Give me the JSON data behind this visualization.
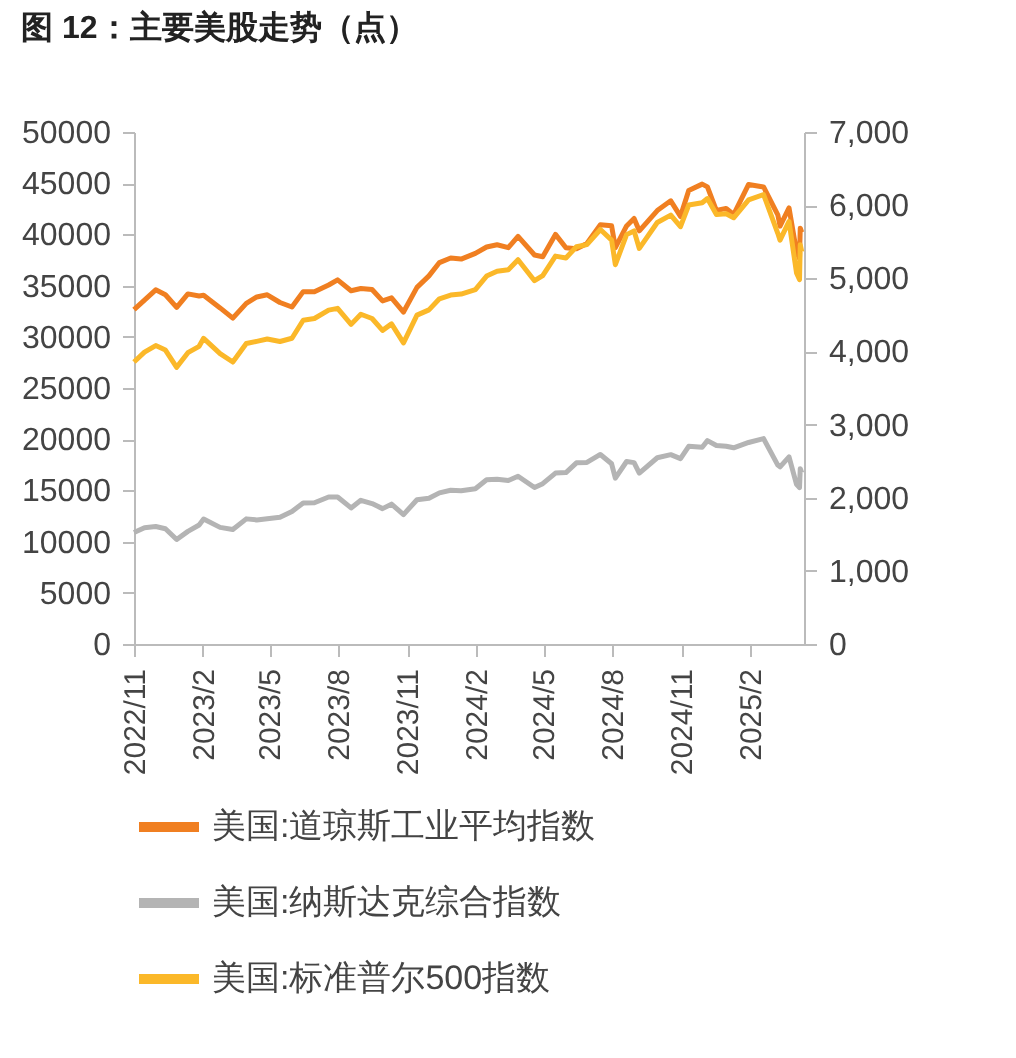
{
  "chart_data": {
    "type": "line",
    "title": "图 12：主要美股走势（点）",
    "x": [
      "2022-11-01",
      "2022-11-15",
      "2022-11-30",
      "2022-12-13",
      "2022-12-28",
      "2023-01-12",
      "2023-01-27",
      "2023-02-02",
      "2023-02-24",
      "2023-03-13",
      "2023-03-31",
      "2023-04-14",
      "2023-04-28",
      "2023-05-15",
      "2023-05-31",
      "2023-06-15",
      "2023-06-30",
      "2023-07-19",
      "2023-07-31",
      "2023-08-18",
      "2023-08-31",
      "2023-09-15",
      "2023-09-29",
      "2023-10-11",
      "2023-10-27",
      "2023-11-14",
      "2023-11-30",
      "2023-12-14",
      "2023-12-29",
      "2024-01-12",
      "2024-01-31",
      "2024-02-15",
      "2024-02-29",
      "2024-03-15",
      "2024-03-28",
      "2024-04-19",
      "2024-04-30",
      "2024-05-17",
      "2024-05-31",
      "2024-06-14",
      "2024-06-28",
      "2024-07-16",
      "2024-07-31",
      "2024-08-05",
      "2024-08-20",
      "2024-08-30",
      "2024-09-06",
      "2024-09-30",
      "2024-10-18",
      "2024-10-31",
      "2024-11-11",
      "2024-11-29",
      "2024-12-06",
      "2024-12-18",
      "2024-12-31",
      "2025-01-10",
      "2025-01-30",
      "2025-02-19",
      "2025-03-10",
      "2025-03-13",
      "2025-03-25",
      "2025-04-04",
      "2025-04-08",
      "2025-04-09",
      "2025-04-11"
    ],
    "series": [
      {
        "name": "美国:道琼斯工业平均指数",
        "color": "#f07f21",
        "values": [
          32650,
          33590,
          34590,
          34110,
          32880,
          34190,
          33980,
          34050,
          32820,
          31820,
          33270,
          33890,
          34100,
          33350,
          32910,
          34410,
          34410,
          35060,
          35560,
          34500,
          34720,
          34620,
          33510,
          33800,
          32420,
          34830,
          35950,
          37250,
          37690,
          37590,
          38150,
          38770,
          38990,
          38710,
          39810,
          37990,
          37820,
          40000,
          38690,
          38590,
          39120,
          40950,
          40840,
          38700,
          40830,
          41560,
          40350,
          42330,
          43280,
          41760,
          44290,
          44910,
          44640,
          42330,
          42540,
          41940,
          44880,
          44630,
          41910,
          40810,
          42590,
          38310,
          37650,
          40610,
          40210
        ]
      },
      {
        "name": "美国:纳斯达克综合指数",
        "color": "#b4b4b4",
        "values": [
          10890,
          11360,
          11470,
          11260,
          10210,
          11000,
          11620,
          12200,
          11390,
          11190,
          12220,
          12120,
          12230,
          12370,
          12940,
          13780,
          13790,
          14360,
          14350,
          13290,
          14030,
          13710,
          13220,
          13660,
          12640,
          14090,
          14230,
          14760,
          15010,
          14970,
          15160,
          16040,
          16090,
          15970,
          16380,
          15280,
          15660,
          16690,
          16740,
          17690,
          17730,
          18510,
          17600,
          16200,
          17820,
          17710,
          16690,
          18190,
          18490,
          18100,
          19300,
          19220,
          19860,
          19390,
          19310,
          19160,
          19680,
          20056,
          17470,
          17300,
          18270,
          15590,
          15270,
          17120,
          16720
        ]
      },
      {
        "name": "美国:标准普尔500指数",
        "color": "#fbb829",
        "axis": "y2",
        "values": [
          3856,
          3991,
          4080,
          4019,
          3783,
          3983,
          4070,
          4179,
          3970,
          3855,
          4109,
          4138,
          4169,
          4136,
          4180,
          4426,
          4450,
          4565,
          4589,
          4370,
          4508,
          4450,
          4288,
          4377,
          4117,
          4496,
          4568,
          4720,
          4770,
          4784,
          4846,
          5030,
          5096,
          5117,
          5254,
          4967,
          5036,
          5303,
          5278,
          5431,
          5460,
          5667,
          5522,
          5186,
          5597,
          5648,
          5408,
          5762,
          5864,
          5705,
          6001,
          6032,
          6090,
          5872,
          5882,
          5827,
          6071,
          6144,
          5615,
          5522,
          5777,
          5074,
          4982,
          5457,
          5363
        ]
      }
    ],
    "xlim": [
      "2022-11-01",
      "2025-04-14"
    ],
    "xticks": [
      {
        "value": "2022-11-01",
        "label": "2022/11"
      },
      {
        "value": "2023-02-01",
        "label": "2023/2"
      },
      {
        "value": "2023-05-01",
        "label": "2023/5"
      },
      {
        "value": "2023-08-01",
        "label": "2023/8"
      },
      {
        "value": "2023-11-01",
        "label": "2023/11"
      },
      {
        "value": "2024-02-01",
        "label": "2024/2"
      },
      {
        "value": "2024-05-01",
        "label": "2024/5"
      },
      {
        "value": "2024-08-01",
        "label": "2024/8"
      },
      {
        "value": "2024-11-01",
        "label": "2024/11"
      },
      {
        "value": "2025-02-01",
        "label": "2025/2"
      }
    ],
    "ylim": [
      0,
      50000
    ],
    "yticks": [
      0,
      5000,
      10000,
      15000,
      20000,
      25000,
      30000,
      35000,
      40000,
      45000,
      50000
    ],
    "y2lim": [
      0,
      7000
    ],
    "y2ticks": [
      0,
      {
        "value": 1000,
        "label": "1,000"
      },
      {
        "value": 2000,
        "label": "2,000"
      },
      {
        "value": 3000,
        "label": "3,000"
      },
      {
        "value": 4000,
        "label": "4,000"
      },
      {
        "value": 5000,
        "label": "5,000"
      },
      {
        "value": 6000,
        "label": "6,000"
      },
      {
        "value": 7000,
        "label": "7,000"
      }
    ],
    "grid": false,
    "legend": "bottom"
  }
}
